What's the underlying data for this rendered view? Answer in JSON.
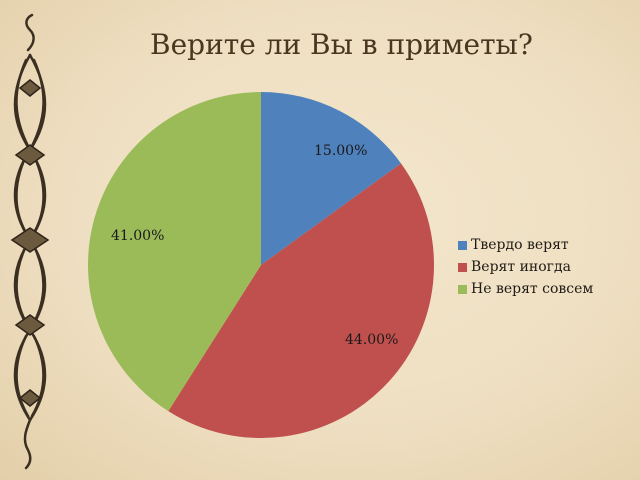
{
  "slide": {
    "title": "Верите ли Вы в приметы?"
  },
  "legend": {
    "items": [
      {
        "label": "Твердо верят",
        "color": "#4f81bd"
      },
      {
        "label": "Верят иногда",
        "color": "#c0504d"
      },
      {
        "label": "Не верят совсем",
        "color": "#9bbb59"
      }
    ]
  },
  "labels": {
    "slice0": "15.00%",
    "slice1": "44.00%",
    "slice2": "41.00%"
  },
  "chart_data": {
    "type": "pie",
    "title": "Верите ли Вы в приметы?",
    "categories": [
      "Твердо верят",
      "Верят иногда",
      "Не верят совсем"
    ],
    "values": [
      15.0,
      44.0,
      41.0
    ],
    "value_unit": "%",
    "data_labels": [
      "15.00%",
      "44.00%",
      "41.00%"
    ],
    "colors": [
      "#4f81bd",
      "#c0504d",
      "#9bbb59"
    ],
    "start_angle": "12 o'clock, clockwise",
    "legend_position": "right"
  }
}
